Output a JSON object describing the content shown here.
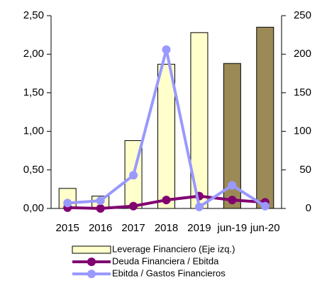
{
  "chart_data": {
    "type": "bar_line",
    "categories": [
      "2015",
      "2016",
      "2017",
      "2018",
      "2019",
      "jun-19",
      "jun-20"
    ],
    "series": [
      {
        "name": "Leverage Financiero (Eje izq.)",
        "kind": "bar",
        "colors": [
          "#ffffcc",
          "#ffffcc",
          "#ffffcc",
          "#ffffcc",
          "#ffffcc",
          "#9c8a56",
          "#9c8a56"
        ],
        "values": [
          0.26,
          0.16,
          0.88,
          1.87,
          2.28,
          1.88,
          2.35
        ]
      },
      {
        "name": "Deuda Financiera / Ebitda",
        "kind": "line",
        "color": "#800070",
        "values": [
          0.01,
          0.0,
          0.03,
          0.11,
          0.16,
          0.11,
          0.08
        ]
      },
      {
        "name": "Ebitda / Gastos Financieros",
        "kind": "line",
        "color": "#9999ff",
        "axis": "y2",
        "values": [
          7,
          10,
          43,
          206,
          2,
          30,
          3
        ]
      }
    ],
    "ylim": [
      0,
      2.5
    ],
    "yticks": [
      {
        "value": 0,
        "label": "0,00"
      },
      {
        "value": 0.5,
        "label": "0,50"
      },
      {
        "value": 1,
        "label": "1,00"
      },
      {
        "value": 1.5,
        "label": "1,50"
      },
      {
        "value": 2,
        "label": "2,00"
      },
      {
        "value": 2.5,
        "label": "2,50"
      }
    ],
    "y2lim": [
      0,
      250
    ],
    "y2ticks": [
      0,
      50,
      100,
      150,
      200,
      250
    ]
  }
}
